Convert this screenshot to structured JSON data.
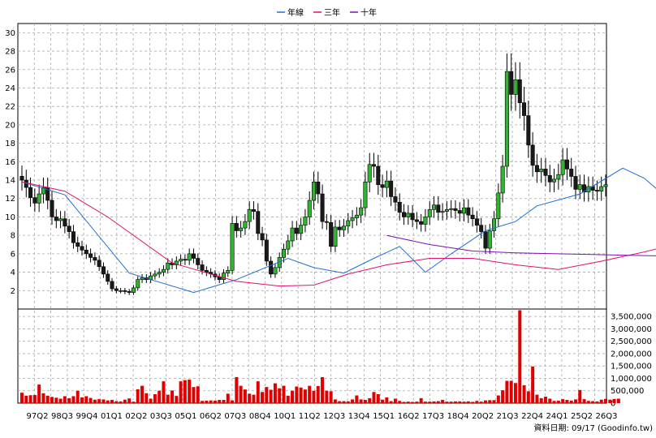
{
  "legend": [
    {
      "label": "年線",
      "color": "#1f6fd0"
    },
    {
      "label": "三年",
      "color": "#e0106a"
    },
    {
      "label": "十年",
      "color": "#7a12b0"
    }
  ],
  "source_note": "資料日期: 09/17 (Goodinfo.tw)",
  "colors": {
    "up": "#2fb52f",
    "down": "#1a1a1a",
    "volume": "#e00000",
    "grid": "#a8a8a8"
  },
  "chart_data": [
    {
      "type": "candlestick",
      "panel": "price",
      "ylim": [
        0,
        31
      ],
      "yticks": [
        2,
        4,
        6,
        8,
        10,
        12,
        14,
        16,
        18,
        20,
        22,
        24,
        26,
        28,
        30
      ],
      "grid": true,
      "x_tick_labels": [
        "97Q2",
        "98Q3",
        "99Q4",
        "01Q1",
        "02Q2",
        "03Q3",
        "05Q1",
        "06Q2",
        "07Q3",
        "08Q4",
        "10Q1",
        "11Q2",
        "12Q3",
        "13Q4",
        "15Q1",
        "16Q2",
        "17Q3",
        "18Q4",
        "20Q2",
        "21Q3",
        "22Q4",
        "24Q1",
        "25Q2",
        "26Q3"
      ],
      "close": [
        14,
        13.2,
        12.1,
        11.5,
        12.5,
        13.2,
        11.8,
        10,
        9.6,
        9.8,
        9,
        8.4,
        7.2,
        6.8,
        6.4,
        6,
        5.6,
        5.3,
        4.6,
        3.8,
        3,
        2.2,
        2,
        2,
        1.9,
        1.8,
        2.3,
        3.2,
        3.4,
        3.2,
        3.6,
        3.8,
        4,
        4.3,
        5,
        4.8,
        5.2,
        5.4,
        5.3,
        6,
        5.5,
        4.8,
        4.2,
        4,
        3.8,
        3.5,
        3.2,
        3.9,
        4.2,
        9.3,
        8.5,
        8.8,
        9.5,
        10.8,
        10.6,
        8.2,
        7.5,
        5.2,
        3.8,
        4.5,
        5.6,
        6.5,
        7.4,
        8.8,
        8.2,
        9.1,
        10,
        11.8,
        13.8,
        12.5,
        9.5,
        9.4,
        6.8,
        8.9,
        8.6,
        9,
        9.6,
        9.9,
        10.2,
        11,
        13.8,
        15.7,
        15.5,
        13.5,
        13.2,
        13.9,
        12.2,
        11.6,
        10.5,
        10,
        10.4,
        9.7,
        9.5,
        9.2,
        10,
        10.8,
        11.3,
        10.5,
        10.6,
        10.8,
        10.9,
        10.7,
        10.4,
        11,
        10.2,
        9.8,
        9.1,
        8.4,
        6.6,
        8.5,
        9.8,
        12.6,
        15.5,
        25.8,
        23.3,
        24.9,
        22.4,
        21,
        17.8,
        15.6,
        14.9,
        15.2,
        14.5,
        13.8,
        14.1,
        14.6,
        16.2,
        15.2,
        14.4,
        13,
        13.5,
        12.7,
        13.3,
        12.9,
        12.8,
        13.3,
        13.5
      ],
      "series": [
        {
          "name": "年線",
          "color": "#1f6fd0",
          "points": [
            [
              0,
              13.8
            ],
            [
              10,
              12.4
            ],
            [
              25,
              3.9
            ],
            [
              40,
              1.8
            ],
            [
              50,
              3.2
            ],
            [
              62,
              5.5
            ],
            [
              68,
              4.5
            ],
            [
              75,
              3.9
            ],
            [
              82,
              5.5
            ],
            [
              88,
              6.8
            ],
            [
              94,
              4
            ],
            [
              100,
              6
            ],
            [
              108,
              8.5
            ],
            [
              115,
              9.5
            ],
            [
              120,
              11.2
            ],
            [
              130,
              12.5
            ],
            [
              140,
              15.3
            ],
            [
              145,
              14.2
            ],
            [
              150,
              12.2
            ],
            [
              157,
              10.5
            ],
            [
              165,
              10.6
            ],
            [
              180,
              10.7
            ],
            [
              188,
              10.2
            ],
            [
              194,
              8.5
            ],
            [
              198,
              8.6
            ],
            [
              204,
              10.5
            ],
            [
              210,
              15
            ],
            [
              215,
              20.5
            ],
            [
              220,
              22
            ],
            [
              224,
              20
            ],
            [
              230,
              16.5
            ],
            [
              236,
              15
            ],
            [
              244,
              14
            ],
            [
              250,
              14.3
            ],
            [
              256,
              14.8
            ],
            [
              262,
              14
            ],
            [
              270,
              12.8
            ],
            [
              280,
              13.2
            ],
            [
              289,
              13.3
            ]
          ]
        },
        {
          "name": "三年",
          "color": "#e0106a",
          "points": [
            [
              0,
              13.8
            ],
            [
              10,
              12.8
            ],
            [
              20,
              10
            ],
            [
              35,
              5
            ],
            [
              50,
              3
            ],
            [
              60,
              2.5
            ],
            [
              68,
              2.6
            ],
            [
              76,
              3.8
            ],
            [
              85,
              4.8
            ],
            [
              95,
              5.5
            ],
            [
              105,
              5.5
            ],
            [
              115,
              4.8
            ],
            [
              125,
              4.3
            ],
            [
              135,
              5.2
            ],
            [
              145,
              6.2
            ],
            [
              158,
              7.7
            ],
            [
              168,
              7.9
            ],
            [
              180,
              9
            ],
            [
              190,
              10.6
            ],
            [
              200,
              11.9
            ],
            [
              210,
              12.5
            ],
            [
              218,
              12.6
            ],
            [
              226,
              12
            ],
            [
              236,
              10.8
            ],
            [
              248,
              10.7
            ],
            [
              258,
              10.3
            ],
            [
              266,
              9.8
            ],
            [
              275,
              10.2
            ],
            [
              285,
              12.2
            ],
            [
              295,
              15.5
            ],
            [
              305,
              16.5
            ],
            [
              312,
              17.2
            ],
            [
              320,
              17.8
            ],
            [
              330,
              17
            ],
            [
              340,
              15.2
            ],
            [
              350,
              14.5
            ],
            [
              360,
              13.8
            ],
            [
              365,
              13.6
            ]
          ]
        },
        {
          "name": "十年",
          "color": "#7a12b0",
          "points": [
            [
              85,
              8
            ],
            [
              95,
              7
            ],
            [
              105,
              6.3
            ],
            [
              115,
              6.1
            ],
            [
              125,
              6
            ],
            [
              135,
              5.9
            ],
            [
              145,
              5.8
            ],
            [
              155,
              5.7
            ],
            [
              165,
              5.5
            ],
            [
              180,
              5.3
            ],
            [
              195,
              5.4
            ],
            [
              210,
              5.5
            ],
            [
              220,
              5.2
            ],
            [
              235,
              5.1
            ],
            [
              250,
              5.8
            ],
            [
              265,
              6.6
            ],
            [
              280,
              7.3
            ],
            [
              295,
              8.3
            ],
            [
              310,
              9.3
            ],
            [
              320,
              9.5
            ],
            [
              330,
              9.8
            ],
            [
              340,
              10
            ],
            [
              350,
              10.4
            ],
            [
              360,
              10.6
            ],
            [
              372,
              10.6
            ],
            [
              382,
              10.6
            ],
            [
              392,
              10.5
            ],
            [
              403,
              11.3
            ],
            [
              412,
              12.2
            ],
            [
              425,
              12.8
            ],
            [
              440,
              12.9
            ],
            [
              455,
              13
            ],
            [
              470,
              13
            ],
            [
              480,
              13
            ],
            [
              490,
              13.2
            ]
          ]
        }
      ]
    },
    {
      "type": "bar",
      "panel": "volume",
      "ylim": [
        0,
        3800000
      ],
      "yticks": [
        0,
        500000,
        1000000,
        1500000,
        2000000,
        2500000,
        3000000,
        3500000
      ],
      "ytick_labels": [
        "0",
        "500,000",
        "1,000,000",
        "1,500,000",
        "2,000,000",
        "2,500,000",
        "3,000,000",
        "3,500,000"
      ],
      "grid": true,
      "values": [
        420000,
        300000,
        320000,
        330000,
        750000,
        400000,
        300000,
        250000,
        220000,
        180000,
        280000,
        200000,
        280000,
        500000,
        230000,
        280000,
        210000,
        140000,
        160000,
        150000,
        110000,
        130000,
        80000,
        70000,
        140000,
        190000,
        60000,
        560000,
        700000,
        400000,
        180000,
        360000,
        500000,
        880000,
        340000,
        510000,
        290000,
        880000,
        930000,
        950000,
        650000,
        680000,
        90000,
        100000,
        110000,
        100000,
        130000,
        130000,
        380000,
        110000,
        1050000,
        700000,
        550000,
        380000,
        340000,
        880000,
        450000,
        650000,
        540000,
        800000,
        600000,
        700000,
        300000,
        500000,
        670000,
        630000,
        550000,
        700000,
        500000,
        690000,
        1050000,
        500000,
        480000,
        150000,
        80000,
        80000,
        75000,
        150000,
        310000,
        150000,
        130000,
        200000,
        450000,
        360000,
        140000,
        230000,
        80000,
        180000,
        90000,
        50000,
        60000,
        50000,
        60000,
        200000,
        60000,
        60000,
        70000,
        80000,
        130000,
        60000,
        60000,
        70000,
        70000,
        60000,
        70000,
        50000,
        90000,
        60000,
        110000,
        120000,
        120000,
        310000,
        520000,
        900000,
        900000,
        810000,
        3750000,
        720000,
        480000,
        1480000,
        340000,
        200000,
        260000,
        180000,
        90000,
        100000,
        160000,
        130000,
        100000,
        150000,
        530000,
        160000,
        90000,
        80000,
        70000,
        140000,
        170000,
        140000,
        170000,
        180000
      ]
    }
  ]
}
